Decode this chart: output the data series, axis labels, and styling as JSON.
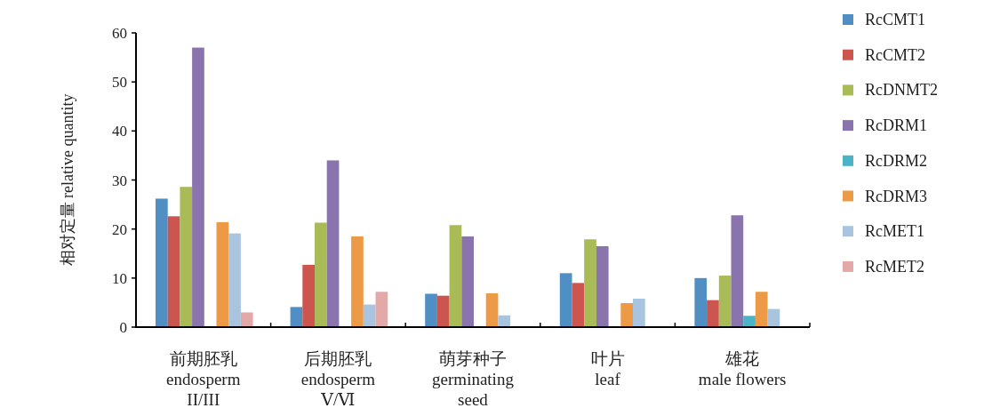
{
  "chart_data": {
    "type": "bar",
    "ylabel": "相对定量 relative quantity",
    "categories": [
      "前期胚乳\nendosperm\nII/III",
      "后期胚乳\nendosperm\nⅤ/Ⅵ",
      "萌芽种子\ngerminating\nseed",
      "叶片\nleaf",
      "雄花\nmale flowers"
    ],
    "ylim": [
      0,
      60
    ],
    "yticks": [
      0,
      10,
      20,
      30,
      40,
      50,
      60
    ],
    "legend": "right",
    "series": [
      {
        "name": "RcCMT1",
        "color": "#4f8fc4",
        "values": [
          26.2,
          4.1,
          6.8,
          11.0,
          10.0
        ]
      },
      {
        "name": "RcCMT2",
        "color": "#cd5550",
        "values": [
          22.6,
          12.7,
          6.4,
          9.0,
          5.5
        ]
      },
      {
        "name": "RcDNMT2",
        "color": "#a9bb57",
        "values": [
          28.6,
          21.3,
          20.8,
          17.9,
          10.5
        ]
      },
      {
        "name": "RcDRM1",
        "color": "#8a74ad",
        "values": [
          57.0,
          34.0,
          18.5,
          16.5,
          22.8
        ]
      },
      {
        "name": "RcDRM2",
        "color": "#4bb3c6",
        "values": [
          0,
          0,
          0,
          0,
          2.3
        ]
      },
      {
        "name": "RcDRM3",
        "color": "#ec9a45",
        "values": [
          21.4,
          18.5,
          6.9,
          4.9,
          7.2
        ]
      },
      {
        "name": "RcMET1",
        "color": "#a9c4df",
        "values": [
          19.1,
          4.6,
          2.4,
          5.8,
          3.7
        ]
      },
      {
        "name": "RcMET2",
        "color": "#e3a9a8",
        "values": [
          3.0,
          7.2,
          0,
          null,
          null
        ]
      }
    ]
  }
}
